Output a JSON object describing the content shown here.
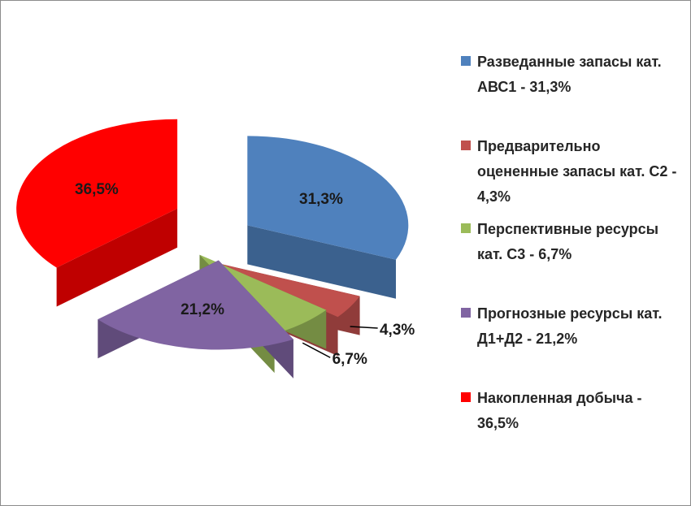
{
  "chart_data": {
    "type": "pie",
    "variant": "3d-exploded",
    "series": [
      {
        "values": [
          31.3,
          4.3,
          6.7,
          21.2,
          36.5
        ],
        "data_labels": [
          "31,3%",
          "4,3%",
          "6,7%",
          "21,2%",
          "36,5%"
        ]
      }
    ],
    "categories": [
      "Разведанные запасы кат. АВС1  -  31,3%",
      "Предварительно оцененные запасы кат. С2  - 4,3%",
      "Перспективные ресурсы кат. С3  - 6,7%",
      "Прогнозные ресурсы кат. Д1+Д2  - 21,2%",
      "Накопленная добыча - 36,5%"
    ],
    "colors": [
      "#4f81bd",
      "#c0504d",
      "#9bbb59",
      "#8064a2",
      "#ff0000"
    ],
    "legend_position": "right"
  }
}
